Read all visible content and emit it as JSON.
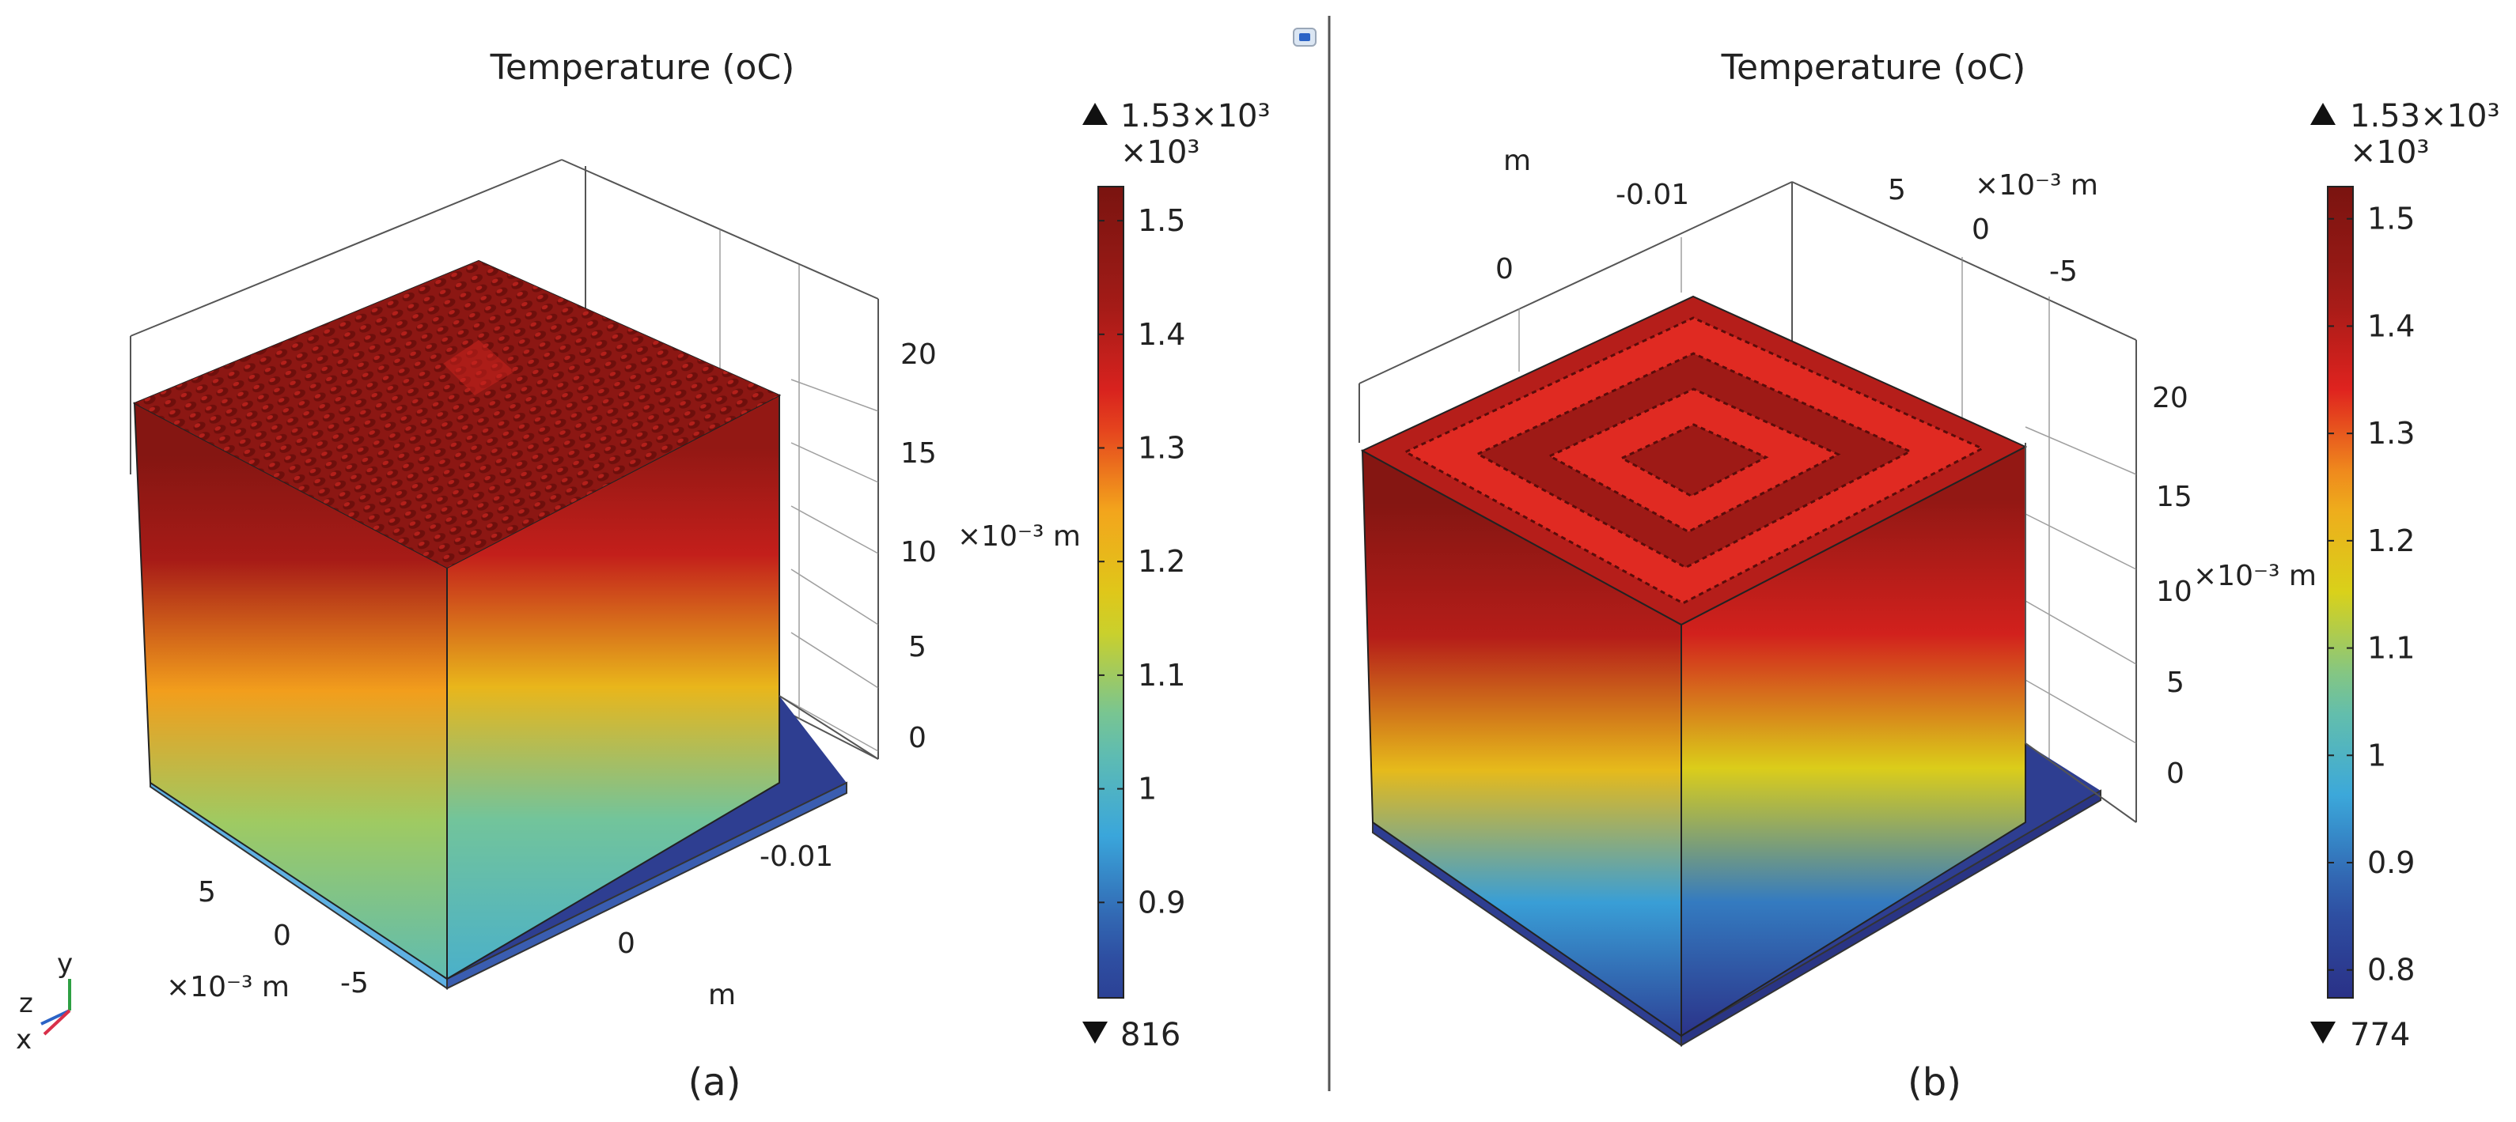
{
  "figure_icon": "camera-icon",
  "colormap": [
    "#2a2f86",
    "#2f54a6",
    "#3aa7dc",
    "#6cc3a2",
    "#d8d21a",
    "#f3a51c",
    "#e0231f",
    "#9c1a16",
    "#7a1410"
  ],
  "colorbar_range": [
    0.77,
    1.53
  ],
  "chart_data": [
    {
      "type": "heatmap",
      "title": "Temperature (oC)",
      "panel_label": "(a)",
      "legend": {
        "max_label": "1.53×10³",
        "multiplier": "×10³",
        "min_label": "816",
        "min": 0.816,
        "max": 1.53,
        "ticks": [
          0.9,
          1,
          1.1,
          1.2,
          1.3,
          1.4,
          1.5
        ],
        "tick_labels": [
          "0.9",
          "1",
          "1.1",
          "1.2",
          "1.3",
          "1.4",
          "1.5"
        ]
      },
      "axes": {
        "x_unit": "×10⁻³ m",
        "x_ticks": [
          "5",
          "0",
          "-5"
        ],
        "y_unit": "m",
        "y_ticks": [
          "0",
          "-0.01"
        ],
        "z_unit": "×10⁻³ m",
        "z_ticks": [
          "0",
          "5",
          "10",
          "15",
          "20"
        ],
        "zlim": [
          0,
          22
        ]
      },
      "face_gradient_stops": [
        {
          "height_mm": 0,
          "value": 1.03
        },
        {
          "height_mm": 6,
          "value": 1.1
        },
        {
          "height_mm": 11,
          "value": 1.25
        },
        {
          "height_mm": 16,
          "value": 1.42
        },
        {
          "height_mm": 20,
          "value": 1.5
        }
      ],
      "surface_texture": "dense-spiky"
    },
    {
      "type": "heatmap",
      "title": "Temperature (oC)",
      "panel_label": "(b)",
      "legend": {
        "max_label": "1.53×10³",
        "multiplier": "×10³",
        "min_label": "774",
        "min": 0.774,
        "max": 1.53,
        "ticks": [
          0.8,
          0.9,
          1,
          1.1,
          1.2,
          1.3,
          1.4,
          1.5
        ],
        "tick_labels": [
          "0.8",
          "0.9",
          "1",
          "1.1",
          "1.2",
          "1.3",
          "1.4",
          "1.5"
        ]
      },
      "axes": {
        "x_unit": "m",
        "x_ticks": [
          "0",
          "-0.01"
        ],
        "y_unit": "×10⁻³ m",
        "y_ticks": [
          "5",
          "0",
          "-5"
        ],
        "z_unit": "×10⁻³ m",
        "z_ticks": [
          "0",
          "5",
          "10",
          "15",
          "20"
        ],
        "zlim": [
          0,
          22
        ]
      },
      "face_gradient_stops": [
        {
          "height_mm": 0,
          "value": 0.82
        },
        {
          "height_mm": 5,
          "value": 0.95
        },
        {
          "height_mm": 10,
          "value": 1.2
        },
        {
          "height_mm": 15,
          "value": 1.4
        },
        {
          "height_mm": 20,
          "value": 1.5
        }
      ],
      "surface_texture": "concentric-rings"
    }
  ],
  "triad": {
    "z": "z",
    "y": "y",
    "x": "x"
  }
}
